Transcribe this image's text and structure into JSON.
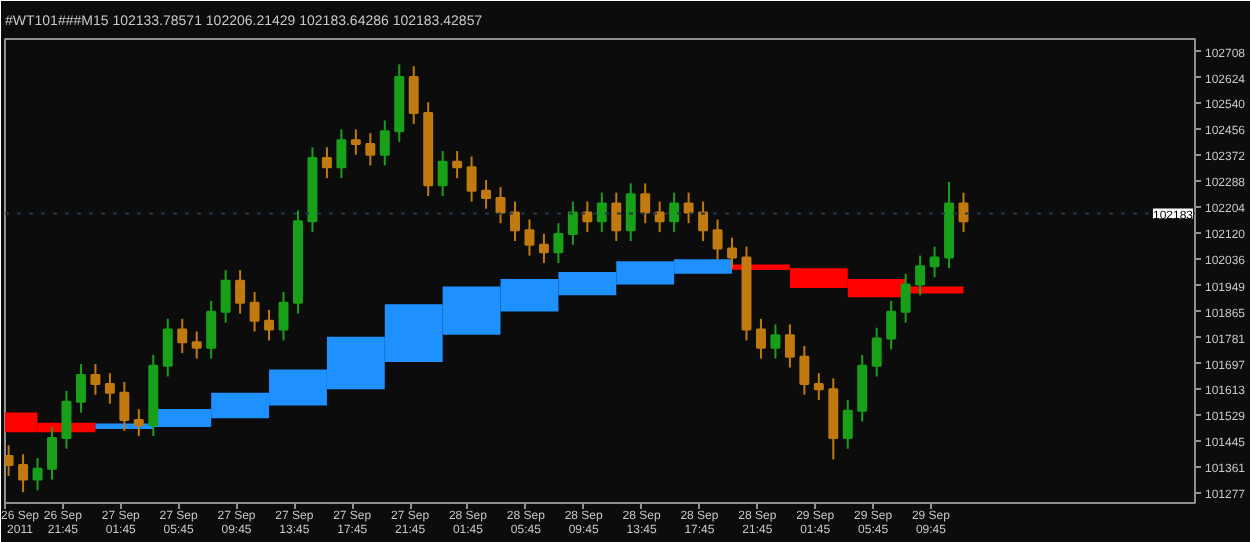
{
  "chart_data": {
    "type": "candlestick",
    "title": "#WT101###M15  102133.78571 102206.21429 102183.64286 102183.42857",
    "xlim": [
      "2011-09-26T17:45",
      "2011-09-30T04:00"
    ],
    "ylim": [
      101245,
      102749
    ],
    "xticks": [
      {
        "value": "2011-09-26T17:45",
        "label": "26 Sep 2011"
      },
      {
        "value": "2011-09-26T21:45",
        "label": "26 Sep 21:45"
      },
      {
        "value": "2011-09-27T01:45",
        "label": "27 Sep 01:45"
      },
      {
        "value": "2011-09-27T05:45",
        "label": "27 Sep 05:45"
      },
      {
        "value": "2011-09-27T09:45",
        "label": "27 Sep 09:45"
      },
      {
        "value": "2011-09-27T13:45",
        "label": "27 Sep 13:45"
      },
      {
        "value": "2011-09-27T17:45",
        "label": "27 Sep 17:45"
      },
      {
        "value": "2011-09-27T21:45",
        "label": "27 Sep 21:45"
      },
      {
        "value": "2011-09-28T01:45",
        "label": "28 Sep 01:45"
      },
      {
        "value": "2011-09-28T05:45",
        "label": "28 Sep 05:45"
      },
      {
        "value": "2011-09-28T09:45",
        "label": "28 Sep 09:45"
      },
      {
        "value": "2011-09-28T13:45",
        "label": "28 Sep 13:45"
      },
      {
        "value": "2011-09-28T17:45",
        "label": "28 Sep 17:45"
      },
      {
        "value": "2011-09-28T21:45",
        "label": "28 Sep 21:45"
      },
      {
        "value": "2011-09-29T01:45",
        "label": "29 Sep 01:45"
      },
      {
        "value": "2011-09-29T05:45",
        "label": "29 Sep 05:45"
      },
      {
        "value": "2011-09-29T09:45",
        "label": "29 Sep 09:45"
      }
    ],
    "yticks": [
      102708,
      102624,
      102540,
      102456,
      102372,
      102288,
      102204,
      102120,
      102036,
      101949,
      101865,
      101781,
      101697,
      101613,
      101529,
      101445,
      101361,
      101277
    ],
    "ref_lines": [
      {
        "axis": "y",
        "value": 102183,
        "label": "102183",
        "color": "#1f3550",
        "line_style": "dotted"
      }
    ],
    "series": [
      {
        "type": "bar",
        "x": [
          "2011-09-26T18:52",
          "2011-09-26T22:00",
          "2011-09-27T02:00",
          "2011-09-27T06:00",
          "2011-09-27T10:00",
          "2011-09-27T14:00",
          "2011-09-27T18:00",
          "2011-09-27T22:00",
          "2011-09-28T02:00",
          "2011-09-28T06:00",
          "2011-09-28T10:00",
          "2011-09-28T14:00",
          "2011-09-28T18:00",
          "2011-09-28T22:00",
          "2011-09-29T02:00",
          "2011-09-29T06:00",
          "2011-09-29T10:00"
        ],
        "base": [
          101474,
          101474,
          101485,
          101491,
          101520,
          101561,
          101614,
          101702,
          101790,
          101866,
          101918,
          101953,
          101988,
          102000,
          101942,
          101912,
          101924
        ],
        "values": [
          64,
          31,
          18,
          59,
          82,
          117,
          170,
          187,
          157,
          105,
          76,
          76,
          47,
          18,
          64,
          59,
          23
        ],
        "colors": [
          "#ff0000",
          "#ff0000",
          "#1e90ff",
          "#1e90ff",
          "#1e90ff",
          "#1e90ff",
          "#1e90ff",
          "#1e90ff",
          "#1e90ff",
          "#1e90ff",
          "#1e90ff",
          "#1e90ff",
          "#1e90ff",
          "#ff0000",
          "#ff0000",
          "#ff0000",
          "#ff0000"
        ]
      }
    ],
    "x": [
      "2011-09-26T18:00",
      "2011-09-26T19:00",
      "2011-09-26T20:00",
      "2011-09-26T21:00",
      "2011-09-26T22:00",
      "2011-09-26T23:00",
      "2011-09-27T00:00",
      "2011-09-27T01:00",
      "2011-09-27T02:00",
      "2011-09-27T03:00",
      "2011-09-27T04:00",
      "2011-09-27T05:00",
      "2011-09-27T06:00",
      "2011-09-27T07:00",
      "2011-09-27T08:00",
      "2011-09-27T09:00",
      "2011-09-27T10:00",
      "2011-09-27T11:00",
      "2011-09-27T12:00",
      "2011-09-27T13:00",
      "2011-09-27T14:00",
      "2011-09-27T15:00",
      "2011-09-27T16:00",
      "2011-09-27T17:00",
      "2011-09-27T18:00",
      "2011-09-27T19:00",
      "2011-09-27T20:00",
      "2011-09-27T21:00",
      "2011-09-27T22:00",
      "2011-09-27T23:00",
      "2011-09-28T00:00",
      "2011-09-28T01:00",
      "2011-09-28T02:00",
      "2011-09-28T03:00",
      "2011-09-28T04:00",
      "2011-09-28T05:00",
      "2011-09-28T06:00",
      "2011-09-28T07:00",
      "2011-09-28T08:00",
      "2011-09-28T09:00",
      "2011-09-28T10:00",
      "2011-09-28T11:00",
      "2011-09-28T12:00",
      "2011-09-28T13:00",
      "2011-09-28T14:00",
      "2011-09-28T15:00",
      "2011-09-28T16:00",
      "2011-09-28T17:00",
      "2011-09-28T18:00",
      "2011-09-28T19:00",
      "2011-09-28T20:00",
      "2011-09-28T21:00",
      "2011-09-28T22:00",
      "2011-09-28T23:00",
      "2011-09-29T00:00",
      "2011-09-29T01:00",
      "2011-09-29T02:00",
      "2011-09-29T03:00",
      "2011-09-29T04:00",
      "2011-09-29T05:00",
      "2011-09-29T06:00",
      "2011-09-29T07:00",
      "2011-09-29T08:00",
      "2011-09-29T09:00",
      "2011-09-29T10:00",
      "2011-09-29T11:00",
      "2011-09-29T12:00"
    ],
    "ohlc": [
      [
        101397,
        101432,
        101333,
        101368
      ],
      [
        101368,
        101403,
        101280,
        101321
      ],
      [
        101321,
        101391,
        101286,
        101356
      ],
      [
        101356,
        101491,
        101321,
        101456
      ],
      [
        101456,
        101608,
        101421,
        101573
      ],
      [
        101573,
        101695,
        101538,
        101660
      ],
      [
        101660,
        101695,
        101596,
        101631
      ],
      [
        101631,
        101666,
        101567,
        101602
      ],
      [
        101602,
        101637,
        101479,
        101514
      ],
      [
        101514,
        101549,
        101462,
        101497
      ],
      [
        101497,
        101725,
        101462,
        101690
      ],
      [
        101690,
        101842,
        101655,
        101807
      ],
      [
        101807,
        101842,
        101731,
        101766
      ],
      [
        101766,
        101801,
        101713,
        101748
      ],
      [
        101748,
        101900,
        101713,
        101865
      ],
      [
        101865,
        102000,
        101830,
        101965
      ],
      [
        101965,
        102000,
        101859,
        101894
      ],
      [
        101894,
        101929,
        101801,
        101836
      ],
      [
        101836,
        101871,
        101772,
        101807
      ],
      [
        101807,
        101929,
        101772,
        101894
      ],
      [
        101894,
        102193,
        101859,
        102158
      ],
      [
        102158,
        102398,
        102123,
        102363
      ],
      [
        102363,
        102398,
        102298,
        102333
      ],
      [
        102333,
        102456,
        102298,
        102421
      ],
      [
        102421,
        102456,
        102374,
        102409
      ],
      [
        102409,
        102444,
        102339,
        102374
      ],
      [
        102374,
        102485,
        102339,
        102450
      ],
      [
        102450,
        102667,
        102415,
        102626
      ],
      [
        102626,
        102661,
        102474,
        102509
      ],
      [
        102509,
        102544,
        102240,
        102275
      ],
      [
        102275,
        102386,
        102240,
        102351
      ],
      [
        102351,
        102386,
        102298,
        102333
      ],
      [
        102333,
        102368,
        102222,
        102257
      ],
      [
        102257,
        102292,
        102199,
        102234
      ],
      [
        102234,
        102269,
        102152,
        102187
      ],
      [
        102187,
        102222,
        102094,
        102129
      ],
      [
        102129,
        102164,
        102047,
        102082
      ],
      [
        102082,
        102117,
        102023,
        102058
      ],
      [
        102058,
        102152,
        102023,
        102117
      ],
      [
        102117,
        102222,
        102082,
        102187
      ],
      [
        102187,
        102222,
        102123,
        102158
      ],
      [
        102158,
        102251,
        102123,
        102216
      ],
      [
        102216,
        102251,
        102094,
        102129
      ],
      [
        102129,
        102281,
        102094,
        102246
      ],
      [
        102246,
        102281,
        102152,
        102187
      ],
      [
        102187,
        102222,
        102123,
        102158
      ],
      [
        102158,
        102251,
        102123,
        102216
      ],
      [
        102216,
        102251,
        102152,
        102187
      ],
      [
        102187,
        102222,
        102094,
        102129
      ],
      [
        102129,
        102164,
        102035,
        102070
      ],
      [
        102070,
        102105,
        102006,
        102041
      ],
      [
        102041,
        102076,
        101772,
        101807
      ],
      [
        101807,
        101842,
        101713,
        101748
      ],
      [
        101748,
        101824,
        101713,
        101789
      ],
      [
        101789,
        101824,
        101684,
        101719
      ],
      [
        101719,
        101754,
        101596,
        101631
      ],
      [
        101631,
        101666,
        101579,
        101614
      ],
      [
        101614,
        101649,
        101386,
        101456
      ],
      [
        101456,
        101579,
        101421,
        101544
      ],
      [
        101544,
        101725,
        101509,
        101690
      ],
      [
        101690,
        101813,
        101655,
        101778
      ],
      [
        101778,
        101900,
        101743,
        101865
      ],
      [
        101865,
        101988,
        101830,
        101953
      ],
      [
        101953,
        102047,
        101918,
        102012
      ],
      [
        102012,
        102076,
        101977,
        102041
      ],
      [
        102041,
        102286,
        102006,
        102216
      ],
      [
        102216,
        102251,
        102123,
        102158
      ]
    ],
    "colors": [
      "#c07a10",
      "#c07a10",
      "#19a019",
      "#19a019",
      "#19a019",
      "#19a019",
      "#c07a10",
      "#c07a10",
      "#c07a10",
      "#c07a10",
      "#19a019",
      "#19a019",
      "#c07a10",
      "#c07a10",
      "#19a019",
      "#19a019",
      "#c07a10",
      "#c07a10",
      "#c07a10",
      "#19a019",
      "#19a019",
      "#19a019",
      "#c07a10",
      "#19a019",
      "#c07a10",
      "#c07a10",
      "#19a019",
      "#19a019",
      "#c07a10",
      "#c07a10",
      "#19a019",
      "#c07a10",
      "#c07a10",
      "#c07a10",
      "#c07a10",
      "#c07a10",
      "#c07a10",
      "#c07a10",
      "#19a019",
      "#19a019",
      "#c07a10",
      "#19a019",
      "#c07a10",
      "#19a019",
      "#c07a10",
      "#c07a10",
      "#19a019",
      "#c07a10",
      "#c07a10",
      "#c07a10",
      "#c07a10",
      "#c07a10",
      "#c07a10",
      "#19a019",
      "#c07a10",
      "#c07a10",
      "#c07a10",
      "#c07a10",
      "#19a019",
      "#19a019",
      "#19a019",
      "#19a019",
      "#19a019",
      "#19a019",
      "#19a019",
      "#19a019",
      "#c07a10"
    ]
  }
}
